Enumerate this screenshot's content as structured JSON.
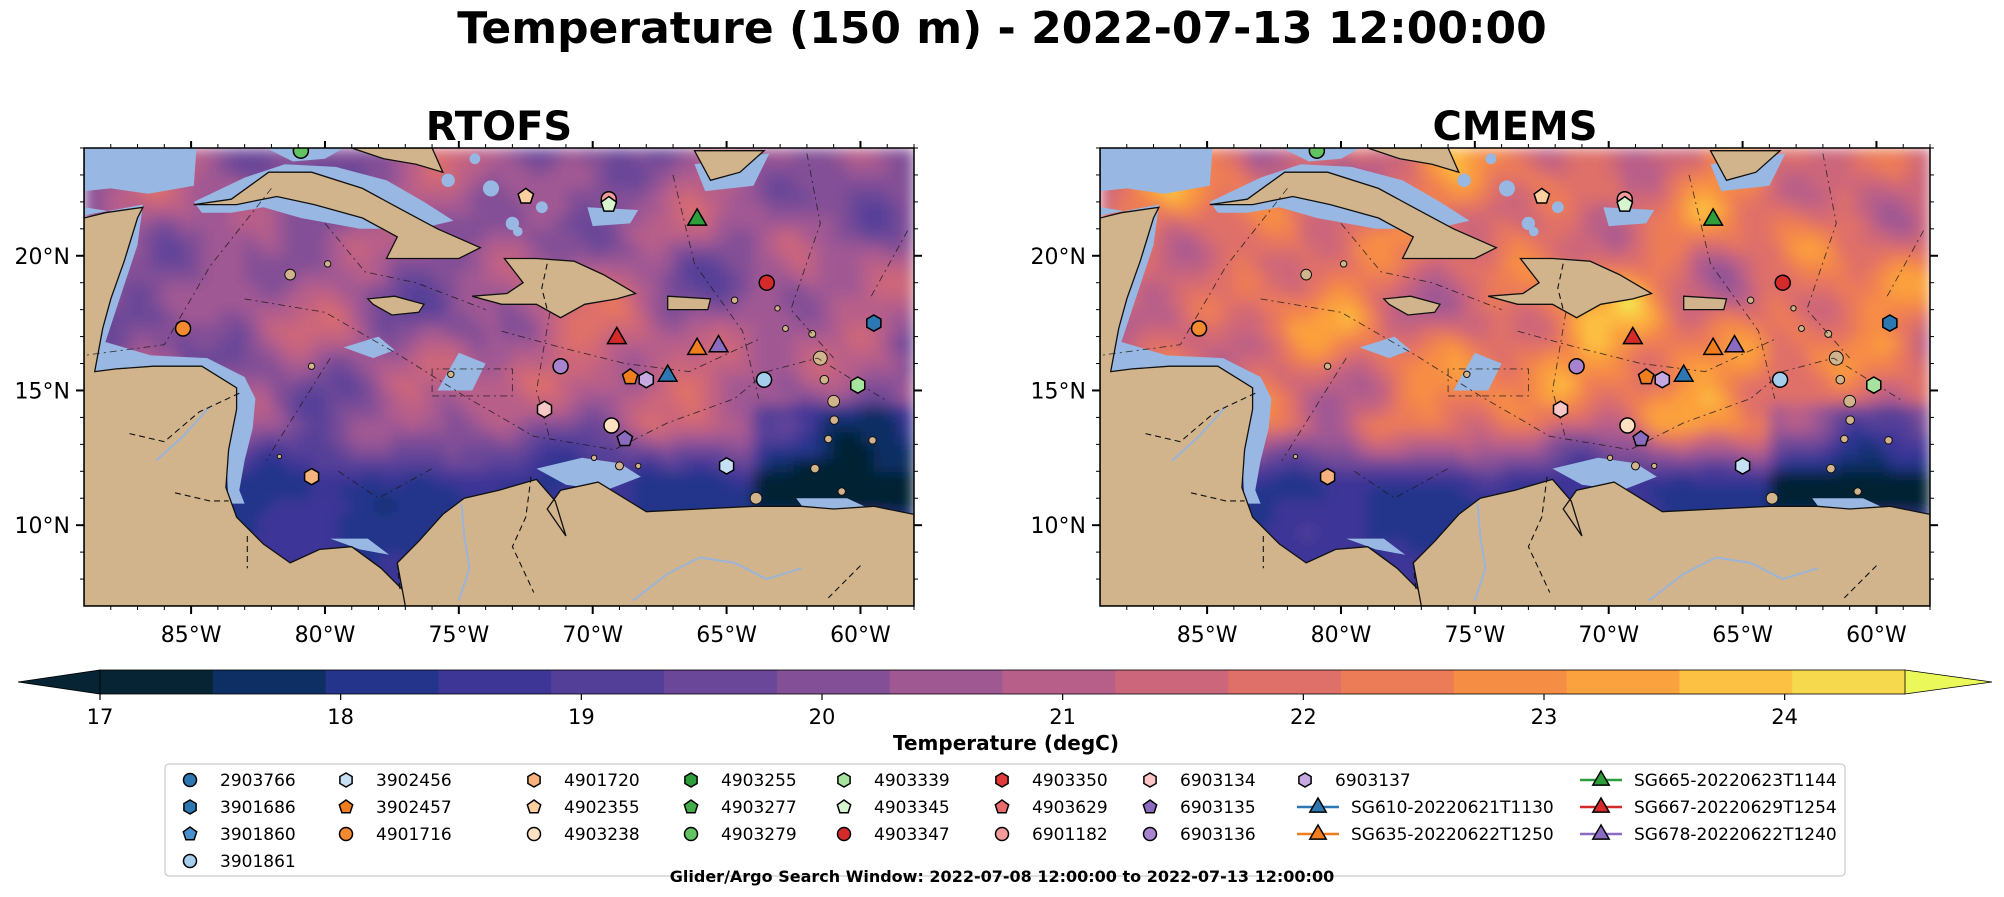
{
  "figure": {
    "title": "Temperature (150 m) - 2022-07-13 12:00:00",
    "footer": "Glider/Argo Search Window: 2022-07-08 12:00:00 to 2022-07-13 12:00:00"
  },
  "colors": {
    "land": "#d2b48c",
    "shelf": "#98b7e2",
    "deep": "#062433"
  },
  "chart_data": [
    {
      "type": "heatmap",
      "title": "RTOFS",
      "xlim": [
        -89,
        -58
      ],
      "ylim": [
        7,
        24
      ],
      "xticks": [
        -85,
        -80,
        -75,
        -70,
        -65,
        -60
      ],
      "xtick_labels": [
        "85°W",
        "80°W",
        "75°W",
        "70°W",
        "65°W",
        "60°W"
      ],
      "yticks": [
        10,
        15,
        20
      ],
      "ytick_labels": [
        "10°N",
        "15°N",
        "20°N"
      ],
      "field": {
        "base": 20.6,
        "amp": 1.3,
        "cool_south": 0.35
      }
    },
    {
      "type": "heatmap",
      "title": "CMEMS",
      "xlim": [
        -89,
        -58
      ],
      "ylim": [
        7,
        24
      ],
      "xticks": [
        -85,
        -80,
        -75,
        -70,
        -65,
        -60
      ],
      "xtick_labels": [
        "85°W",
        "80°W",
        "75°W",
        "70°W",
        "65°W",
        "60°W"
      ],
      "yticks": [
        10,
        15,
        20
      ],
      "ytick_labels": [
        "10°N",
        "15°N",
        "20°N"
      ],
      "field": {
        "base": 22.3,
        "amp": 1.6,
        "cool_south": 0.25
      }
    }
  ],
  "colorbar": {
    "label": "Temperature (degC)",
    "min": 17,
    "max": 24.5,
    "step": 0.5,
    "ticks": [
      17,
      18,
      19,
      20,
      21,
      22,
      23,
      24
    ],
    "tick_labels": [
      "17",
      "18",
      "19",
      "20",
      "21",
      "22",
      "23",
      "24"
    ],
    "colors": [
      "#062433",
      "#0e2f63",
      "#24348a",
      "#3e3697",
      "#543f98",
      "#6a4798",
      "#834f96",
      "#a05893",
      "#b85f89",
      "#cc667a",
      "#de6f69",
      "#ec7b57",
      "#f68d45",
      "#fba13d",
      "#fcc043",
      "#f7d94d"
    ],
    "under": "#062433",
    "over": "#eaf85a"
  },
  "legend": {
    "columns": [
      [
        {
          "label": "2903766",
          "marker": "circle",
          "color": "#2d78b3"
        },
        {
          "label": "3901686",
          "marker": "hexagon",
          "color": "#2d78b3"
        },
        {
          "label": "3901860",
          "marker": "pentagon",
          "color": "#4a8fcd"
        },
        {
          "label": "3901861",
          "marker": "circle",
          "color": "#a5cdec"
        }
      ],
      [
        {
          "label": "3902456",
          "marker": "hexagon",
          "color": "#c6e0f5"
        },
        {
          "label": "3902457",
          "marker": "pentagon",
          "color": "#f07e1e"
        },
        {
          "label": "4901716",
          "marker": "circle",
          "color": "#f38a2f"
        }
      ],
      [
        {
          "label": "4901720",
          "marker": "hexagon",
          "color": "#f7b27d"
        },
        {
          "label": "4902355",
          "marker": "pentagon",
          "color": "#fbcf9f"
        },
        {
          "label": "4903238",
          "marker": "circle",
          "color": "#fde1c3"
        }
      ],
      [
        {
          "label": "4903255",
          "marker": "hexagon",
          "color": "#2e9e3a"
        },
        {
          "label": "4903277",
          "marker": "pentagon",
          "color": "#43ab47"
        },
        {
          "label": "4903279",
          "marker": "circle",
          "color": "#63c262"
        }
      ],
      [
        {
          "label": "4903339",
          "marker": "hexagon",
          "color": "#a6e39f"
        },
        {
          "label": "4903345",
          "marker": "pentagon",
          "color": "#d6f5cf"
        },
        {
          "label": "4903347",
          "marker": "circle",
          "color": "#d52a2a"
        }
      ],
      [
        {
          "label": "4903350",
          "marker": "hexagon",
          "color": "#e03a3a"
        },
        {
          "label": "4903629",
          "marker": "pentagon",
          "color": "#ea6b6b"
        },
        {
          "label": "6901182",
          "marker": "circle",
          "color": "#f59b9b"
        }
      ],
      [
        {
          "label": "6903134",
          "marker": "hexagon",
          "color": "#fbc6c6"
        },
        {
          "label": "6903135",
          "marker": "pentagon",
          "color": "#8a6bbf"
        },
        {
          "label": "6903136",
          "marker": "circle",
          "color": "#a884d0"
        }
      ],
      [
        {
          "label": "6903137",
          "marker": "hexagon",
          "color": "#c6a8e2"
        },
        {
          "label": "SG610-20220621T1130",
          "marker": "triangle-line",
          "color": "#2d78b3"
        },
        {
          "label": "SG635-20220622T1250",
          "marker": "triangle-line",
          "color": "#f07e1e"
        }
      ],
      [
        {
          "label": "SG665-20220623T1144",
          "marker": "triangle-line",
          "color": "#2e9e3a"
        },
        {
          "label": "SG667-20220629T1254",
          "marker": "triangle-line",
          "color": "#d52a2a"
        },
        {
          "label": "SG678-20220622T1240",
          "marker": "triangle-line",
          "color": "#8a6bbf"
        }
      ]
    ]
  },
  "platforms": [
    {
      "id": "6903135",
      "lon": -68.8,
      "lat": 13.2,
      "marker": "pentagon",
      "color": "#8a6bbf"
    },
    {
      "id": "4902355",
      "lon": -72.5,
      "lat": 22.2,
      "marker": "pentagon",
      "color": "#fbcf9f"
    },
    {
      "id": "6901182",
      "lon": -69.4,
      "lat": 22.1,
      "marker": "circle",
      "color": "#f59b9b"
    },
    {
      "id": "4903345",
      "lon": -69.4,
      "lat": 21.9,
      "marker": "pentagon",
      "color": "#d6f5cf"
    },
    {
      "id": "SG665-20220623T1144",
      "lon": -66.1,
      "lat": 21.4,
      "marker": "triangle",
      "color": "#2e9e3a"
    },
    {
      "id": "4903347",
      "lon": -63.5,
      "lat": 19.0,
      "marker": "circle",
      "color": "#d52a2a"
    },
    {
      "id": "4901716",
      "lon": -85.3,
      "lat": 17.3,
      "marker": "circle",
      "color": "#f38a2f"
    },
    {
      "id": "3901686",
      "lon": -59.5,
      "lat": 17.5,
      "marker": "hexagon",
      "color": "#2d78b3"
    },
    {
      "id": "SG667-20220629T1254",
      "lon": -69.1,
      "lat": 17.0,
      "marker": "triangle",
      "color": "#d52a2a"
    },
    {
      "id": "SG635-20220622T1250",
      "lon": -66.1,
      "lat": 16.6,
      "marker": "triangle",
      "color": "#f07e1e"
    },
    {
      "id": "SG678-20220622T1240",
      "lon": -65.3,
      "lat": 16.7,
      "marker": "triangle",
      "color": "#8a6bbf"
    },
    {
      "id": "6903136",
      "lon": -71.2,
      "lat": 15.9,
      "marker": "circle",
      "color": "#a884d0"
    },
    {
      "id": "3902457",
      "lon": -68.6,
      "lat": 15.5,
      "marker": "pentagon",
      "color": "#f07e1e"
    },
    {
      "id": "6903137",
      "lon": -68.0,
      "lat": 15.4,
      "marker": "hexagon",
      "color": "#c6a8e2"
    },
    {
      "id": "SG610-20220621T1130",
      "lon": -67.2,
      "lat": 15.6,
      "marker": "triangle",
      "color": "#2d78b3"
    },
    {
      "id": "3901861",
      "lon": -63.6,
      "lat": 15.4,
      "marker": "circle",
      "color": "#a5cdec"
    },
    {
      "id": "4903339",
      "lon": -60.1,
      "lat": 15.2,
      "marker": "hexagon",
      "color": "#a6e39f"
    },
    {
      "id": "6903134",
      "lon": -71.8,
      "lat": 14.3,
      "marker": "hexagon",
      "color": "#fbc6c6"
    },
    {
      "id": "4903238",
      "lon": -69.3,
      "lat": 13.7,
      "marker": "circle",
      "color": "#fde1c3"
    },
    {
      "id": "3902456",
      "lon": -65.0,
      "lat": 12.2,
      "marker": "hexagon",
      "color": "#c6e0f5"
    },
    {
      "id": "4901720",
      "lon": -80.5,
      "lat": 11.8,
      "marker": "hexagon",
      "color": "#f7b27d"
    },
    {
      "id": "4903279",
      "lon": -80.9,
      "lat": 23.9,
      "marker": "circle",
      "color": "#63c262"
    }
  ]
}
